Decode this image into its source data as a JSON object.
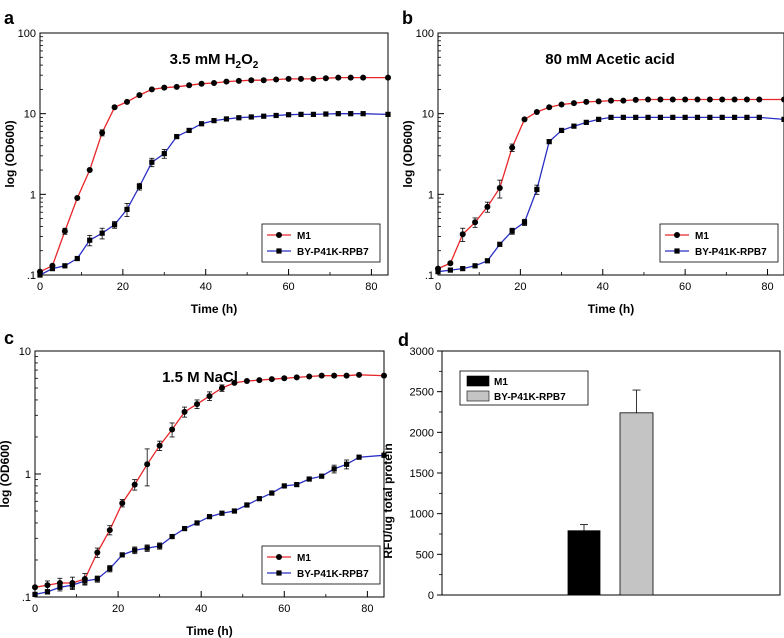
{
  "chart_data": [
    {
      "panel": "a",
      "type": "line",
      "title": "3.5 mM H₂O₂",
      "title_parts": {
        "prefix": "3.5 mM H",
        "sub1": "2",
        "mid": "O",
        "sub2": "2"
      },
      "xlabel": "Time (h)",
      "ylabel": "log (OD600)",
      "yscale": "log",
      "xlim": [
        0,
        84
      ],
      "ylim": [
        0.1,
        100
      ],
      "xticks": [
        0,
        20,
        40,
        60,
        80
      ],
      "xtick_labels": [
        "0",
        "20",
        "40",
        "60",
        "80"
      ],
      "yticks": [
        0.1,
        1,
        10,
        100
      ],
      "ytick_labels": [
        ".1",
        "1",
        "10",
        "100"
      ],
      "legend": [
        "M1",
        "BY-P41K-RPB7"
      ],
      "legend_position": "bottom-right",
      "series": [
        {
          "name": "M1",
          "color": "#e8262a",
          "marker": "circle",
          "x": [
            0,
            3,
            6,
            9,
            12,
            15,
            18,
            21,
            24,
            27,
            30,
            33,
            36,
            39,
            42,
            45,
            48,
            51,
            54,
            57,
            60,
            63,
            66,
            69,
            72,
            75,
            78,
            84
          ],
          "y": [
            0.11,
            0.13,
            0.35,
            0.9,
            2.0,
            5.8,
            12,
            14,
            17,
            20,
            21,
            21.5,
            22.5,
            23.5,
            24,
            25,
            25.5,
            26,
            26,
            26.5,
            27,
            27,
            27,
            27.5,
            28,
            28,
            28,
            28
          ],
          "err": [
            0.005,
            0.01,
            0.03,
            0.06,
            0.12,
            0.5,
            0.6,
            0.6,
            0.7,
            0.6,
            0.6,
            0.6,
            0.6,
            0.6,
            0.6,
            0.6,
            0.6,
            0.6,
            0.6,
            0.6,
            0.6,
            0.6,
            0.6,
            0.6,
            0.6,
            0.6,
            0.6,
            0.6
          ]
        },
        {
          "name": "BY-P41K-RPB7",
          "color": "#2a2fc4",
          "marker": "square",
          "x": [
            0,
            3,
            6,
            9,
            12,
            15,
            18,
            21,
            24,
            27,
            30,
            33,
            36,
            39,
            42,
            45,
            48,
            51,
            54,
            57,
            60,
            63,
            66,
            69,
            72,
            75,
            78,
            84
          ],
          "y": [
            0.1,
            0.12,
            0.13,
            0.16,
            0.27,
            0.33,
            0.42,
            0.65,
            1.25,
            2.5,
            3.2,
            5.2,
            6.2,
            7.5,
            8.2,
            8.6,
            8.9,
            9.1,
            9.3,
            9.5,
            9.7,
            9.8,
            9.8,
            9.9,
            10,
            10,
            10,
            9.8
          ],
          "err": [
            0.005,
            0.006,
            0.008,
            0.01,
            0.04,
            0.05,
            0.04,
            0.12,
            0.12,
            0.3,
            0.4,
            0.4,
            0.3,
            0.3,
            0.3,
            0.3,
            0.3,
            0.3,
            0.3,
            0.3,
            0.3,
            0.3,
            0.3,
            0.3,
            0.3,
            0.3,
            0.3,
            0.3
          ]
        }
      ]
    },
    {
      "panel": "b",
      "type": "line",
      "title": "80 mM Acetic acid",
      "xlabel": "Time (h)",
      "ylabel": "log (OD600)",
      "yscale": "log",
      "xlim": [
        0,
        84
      ],
      "ylim": [
        0.1,
        100
      ],
      "xticks": [
        0,
        20,
        40,
        60,
        80
      ],
      "xtick_labels": [
        "0",
        "20",
        "40",
        "60",
        "80"
      ],
      "yticks": [
        0.1,
        1,
        10,
        100
      ],
      "ytick_labels": [
        ".1",
        "1",
        "10",
        "100"
      ],
      "legend": [
        "M1",
        "BY-P41K-RPB7"
      ],
      "legend_position": "bottom-right",
      "series": [
        {
          "name": "M1",
          "color": "#e8262a",
          "marker": "circle",
          "x": [
            0,
            3,
            6,
            9,
            12,
            15,
            18,
            21,
            24,
            27,
            30,
            33,
            36,
            39,
            42,
            45,
            48,
            51,
            54,
            57,
            60,
            63,
            66,
            69,
            72,
            75,
            78,
            84
          ],
          "y": [
            0.12,
            0.14,
            0.32,
            0.45,
            0.7,
            1.2,
            3.8,
            8.5,
            10.5,
            12,
            13,
            13.5,
            14,
            14.2,
            14.5,
            14.5,
            14.8,
            15,
            15,
            15,
            15,
            15,
            15,
            15,
            15,
            15,
            15,
            15
          ],
          "err": [
            0.01,
            0.01,
            0.06,
            0.06,
            0.1,
            0.3,
            0.4,
            0.5,
            0.5,
            0.4,
            0.4,
            0.4,
            0.4,
            0.4,
            0.4,
            0.4,
            0.4,
            0.4,
            0.4,
            0.4,
            0.4,
            0.4,
            0.4,
            0.4,
            0.4,
            0.4,
            0.4,
            0.4
          ]
        },
        {
          "name": "BY-P41K-RPB7",
          "color": "#2a2fc4",
          "marker": "square",
          "x": [
            0,
            3,
            6,
            9,
            12,
            15,
            18,
            21,
            24,
            27,
            30,
            33,
            36,
            39,
            42,
            45,
            48,
            51,
            54,
            57,
            60,
            63,
            66,
            69,
            72,
            75,
            78,
            84
          ],
          "y": [
            0.11,
            0.115,
            0.12,
            0.13,
            0.15,
            0.24,
            0.35,
            0.45,
            1.15,
            4.5,
            6.2,
            7,
            7.8,
            8.5,
            9,
            9,
            9,
            9,
            9,
            9,
            9,
            9,
            9,
            9,
            9,
            9,
            9,
            8.5
          ],
          "err": [
            0.005,
            0.005,
            0.005,
            0.006,
            0.01,
            0.02,
            0.03,
            0.04,
            0.15,
            0.3,
            0.4,
            0.4,
            0.4,
            0.3,
            0.3,
            0.3,
            0.3,
            0.3,
            0.3,
            0.3,
            0.3,
            0.3,
            0.3,
            0.3,
            0.3,
            0.3,
            0.3,
            0.3
          ]
        }
      ]
    },
    {
      "panel": "c",
      "type": "line",
      "title": "1.5 M NaCl",
      "xlabel": "Time (h)",
      "ylabel": "log (OD600)",
      "yscale": "log",
      "xlim": [
        0,
        84
      ],
      "ylim": [
        0.1,
        10
      ],
      "xticks": [
        0,
        20,
        40,
        60,
        80
      ],
      "xtick_labels": [
        "0",
        "20",
        "40",
        "60",
        "80"
      ],
      "yticks": [
        0.1,
        1,
        10
      ],
      "ytick_labels": [
        ".1",
        "1",
        "10"
      ],
      "legend": [
        "M1",
        "BY-P41K-RPB7"
      ],
      "legend_position": "bottom-right",
      "series": [
        {
          "name": "M1",
          "color": "#e8262a",
          "marker": "circle",
          "x": [
            0,
            3,
            6,
            9,
            12,
            15,
            18,
            21,
            24,
            27,
            30,
            33,
            36,
            39,
            42,
            45,
            48,
            51,
            54,
            57,
            60,
            63,
            66,
            69,
            72,
            75,
            78,
            84
          ],
          "y": [
            0.12,
            0.125,
            0.13,
            0.13,
            0.14,
            0.23,
            0.35,
            0.58,
            0.82,
            1.2,
            1.7,
            2.3,
            3.2,
            3.7,
            4.3,
            5.0,
            5.5,
            5.7,
            5.8,
            5.9,
            6.0,
            6.1,
            6.2,
            6.3,
            6.3,
            6.3,
            6.4,
            6.3
          ],
          "err": [
            0.005,
            0.01,
            0.012,
            0.015,
            0.015,
            0.02,
            0.03,
            0.04,
            0.08,
            0.4,
            0.15,
            0.3,
            0.3,
            0.3,
            0.35,
            0.3,
            0.3,
            0.3,
            0.3,
            0.3,
            0.3,
            0.3,
            0.3,
            0.3,
            0.3,
            0.3,
            0.3,
            0.3
          ]
        },
        {
          "name": "BY-P41K-RPB7",
          "color": "#2a2fc4",
          "marker": "square",
          "x": [
            0,
            3,
            6,
            9,
            12,
            15,
            18,
            21,
            24,
            27,
            30,
            33,
            36,
            39,
            42,
            45,
            48,
            51,
            54,
            57,
            60,
            63,
            66,
            69,
            72,
            75,
            78,
            84
          ],
          "y": [
            0.105,
            0.11,
            0.12,
            0.125,
            0.135,
            0.14,
            0.17,
            0.22,
            0.24,
            0.25,
            0.26,
            0.31,
            0.36,
            0.4,
            0.45,
            0.48,
            0.5,
            0.56,
            0.63,
            0.7,
            0.8,
            0.82,
            0.91,
            0.96,
            1.1,
            1.2,
            1.37,
            1.42
          ],
          "err": [
            0.005,
            0.006,
            0.008,
            0.008,
            0.008,
            0.008,
            0.01,
            0.01,
            0.015,
            0.015,
            0.015,
            0.015,
            0.02,
            0.02,
            0.02,
            0.025,
            0.025,
            0.03,
            0.03,
            0.03,
            0.03,
            0.04,
            0.04,
            0.05,
            0.08,
            0.1,
            0.05,
            0.05
          ]
        }
      ]
    },
    {
      "panel": "d",
      "type": "bar",
      "title": "",
      "xlabel": "",
      "ylabel": "RFU/ug total protein",
      "ylim": [
        0,
        3000
      ],
      "yticks": [
        0,
        500,
        1000,
        1500,
        2000,
        2500,
        3000
      ],
      "ytick_labels": [
        "0",
        "500",
        "1000",
        "1500",
        "2000",
        "2500",
        "3000"
      ],
      "legend": [
        "M1",
        "BY-P41K-RPB7"
      ],
      "legend_position": "top-left",
      "series": [
        {
          "name": "M1",
          "color": "#000000",
          "value": 790,
          "err": 75
        },
        {
          "name": "BY-P41K-RPB7",
          "color": "#c4c4c4",
          "value": 2240,
          "err": 280
        }
      ]
    }
  ]
}
